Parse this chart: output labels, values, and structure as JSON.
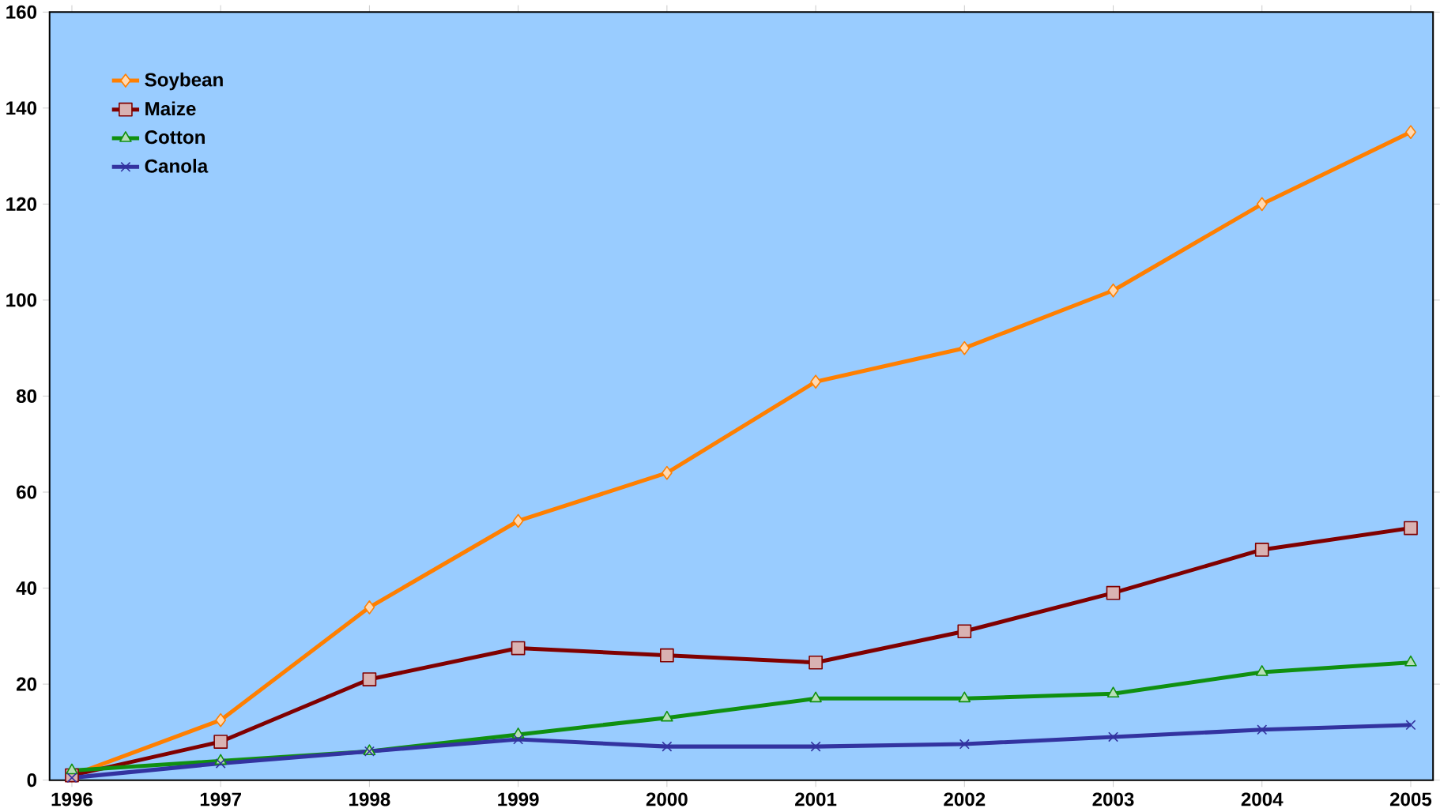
{
  "chart_data": {
    "type": "line",
    "categories": [
      "1996",
      "1997",
      "1998",
      "1999",
      "2000",
      "2001",
      "2002",
      "2003",
      "2004",
      "2005"
    ],
    "series": [
      {
        "name": "Soybean",
        "color": "#ff7f00",
        "marker": "diamond",
        "values": [
          1,
          12.5,
          36,
          54,
          64,
          83,
          90,
          102,
          120,
          135
        ]
      },
      {
        "name": "Maize",
        "color": "#800000",
        "marker": "square",
        "values": [
          1,
          8,
          21,
          27.5,
          26,
          24.5,
          31,
          39,
          48,
          52.5
        ]
      },
      {
        "name": "Cotton",
        "color": "#109010",
        "marker": "triangle",
        "values": [
          2,
          4,
          6,
          9.5,
          13,
          17,
          17,
          18,
          22.5,
          24.5
        ]
      },
      {
        "name": "Canola",
        "color": "#3333a0",
        "marker": "cross",
        "values": [
          0.5,
          3.5,
          6,
          8.5,
          7,
          7,
          7.5,
          9,
          10.5,
          11.5
        ]
      }
    ],
    "ylim": [
      0,
      160
    ],
    "yticks": [
      0,
      20,
      40,
      60,
      80,
      100,
      120,
      140,
      160
    ],
    "grid": false,
    "legend": "top left",
    "line_style": "solid"
  }
}
